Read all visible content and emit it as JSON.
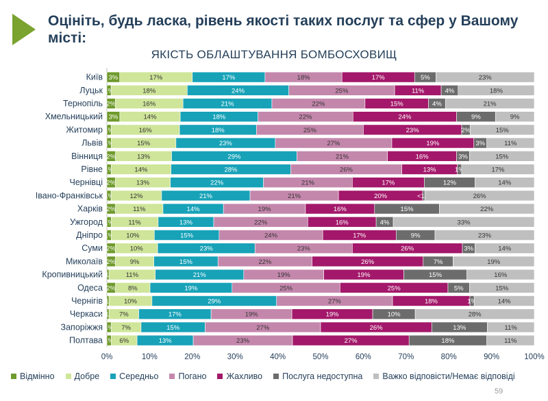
{
  "heading": "Оцініть, будь ласка, рівень якості таких послуг та сфер у Вашому місті:",
  "page_number": "59",
  "colors": {
    "accent": "#7aa32f",
    "title": "#243f5a",
    "series": [
      "#6f9a2c",
      "#cfe59a",
      "#17a2b8",
      "#c487ac",
      "#a3186a",
      "#6c6c6c",
      "#bfbfbf"
    ]
  },
  "chart_data": {
    "type": "bar",
    "orientation": "horizontal-stacked-percent",
    "title": "ЯКІСТЬ ОБЛАШТУВАННЯ  БОМБОСХОВИЩ",
    "xlim": [
      0,
      100
    ],
    "x_ticks": [
      "0%",
      "10%",
      "20%",
      "30%",
      "40%",
      "50%",
      "60%",
      "70%",
      "80%",
      "90%",
      "100%"
    ],
    "legend_position": "bottom",
    "categories": [
      "Київ",
      "Луцьк",
      "Тернопіль",
      "Хмельницький",
      "Житомир",
      "Львів",
      "Вінниця",
      "Рівне",
      "Чернівці",
      "Івано-Франківськ",
      "Харків",
      "Ужгород",
      "Дніпро",
      "Суми",
      "Миколаїв",
      "Кропивницький",
      "Одеса",
      "Чернігів",
      "Черкаси",
      "Запоріжжя",
      "Полтава"
    ],
    "series": [
      {
        "name": "Відмінно",
        "values": [
          3,
          1,
          2,
          3,
          1,
          1,
          2,
          1,
          2,
          1,
          2,
          1,
          1,
          2,
          2,
          0.5,
          2,
          0.5,
          0.5,
          1,
          1
        ],
        "labels": [
          "3%",
          "1%",
          "2%",
          "3%",
          "1%",
          "1%",
          "2%",
          "1%",
          "2%",
          "1%",
          "2%",
          "1%",
          "1%",
          "2%",
          "2%",
          "<1%",
          "2%",
          "<1%",
          "<1%",
          "1%",
          "1%"
        ]
      },
      {
        "name": "Добре",
        "values": [
          17,
          18,
          16,
          14,
          16,
          15,
          13,
          14,
          13,
          12,
          11,
          11,
          10,
          10,
          9,
          11,
          8,
          10,
          7,
          7,
          6
        ],
        "labels": [
          "17%",
          "18%",
          "16%",
          "14%",
          "16%",
          "15%",
          "13%",
          "14%",
          "13%",
          "12%",
          "11%",
          "11%",
          "10%",
          "10%",
          "9%",
          "11%",
          "8%",
          "10%",
          "7%",
          "7%",
          "6%"
        ]
      },
      {
        "name": "Середньо",
        "values": [
          17,
          24,
          21,
          18,
          18,
          23,
          29,
          28,
          22,
          21,
          14,
          13,
          15,
          23,
          15,
          21,
          19,
          29,
          17,
          15,
          13
        ],
        "labels": [
          "17%",
          "24%",
          "21%",
          "18%",
          "18%",
          "23%",
          "29%",
          "28%",
          "22%",
          "21%",
          "14%",
          "13%",
          "15%",
          "23%",
          "15%",
          "21%",
          "19%",
          "29%",
          "17%",
          "15%",
          "13%"
        ]
      },
      {
        "name": "Погано",
        "values": [
          18,
          25,
          22,
          22,
          25,
          27,
          21,
          26,
          21,
          21,
          19,
          22,
          24,
          23,
          22,
          19,
          25,
          27,
          19,
          27,
          23
        ],
        "labels": [
          "18%",
          "25%",
          "22%",
          "22%",
          "25%",
          "27%",
          "21%",
          "26%",
          "21%",
          "21%",
          "19%",
          "22%",
          "24%",
          "23%",
          "22%",
          "19%",
          "25%",
          "27%",
          "19%",
          "27%",
          "23%"
        ]
      },
      {
        "name": "Жахливо",
        "values": [
          17,
          11,
          15,
          24,
          23,
          19,
          16,
          13,
          17,
          20,
          16,
          16,
          17,
          26,
          26,
          19,
          25,
          18,
          19,
          26,
          27
        ],
        "labels": [
          "17%",
          "11%",
          "15%",
          "24%",
          "23%",
          "19%",
          "16%",
          "13%",
          "17%",
          "20%",
          "16%",
          "16%",
          "17%",
          "26%",
          "26%",
          "19%",
          "25%",
          "18%",
          "19%",
          "26%",
          "27%"
        ]
      },
      {
        "name": "Послуга недоступна",
        "values": [
          5,
          4,
          4,
          9,
          2,
          3,
          3,
          1,
          12,
          0.5,
          15,
          4,
          9,
          3,
          7,
          15,
          5,
          1,
          10,
          13,
          18
        ],
        "labels": [
          "5%",
          "4%",
          "4%",
          "9%",
          "2%",
          "3%",
          "3%",
          "1%",
          "12%",
          "<1%",
          "15%",
          "4%",
          "9%",
          "3%",
          "7%",
          "15%",
          "5%",
          "1%",
          "10%",
          "13%",
          "18%"
        ]
      },
      {
        "name": "Важко відповісти/Немає відповіді",
        "values": [
          23,
          18,
          21,
          9,
          15,
          11,
          15,
          17,
          14,
          26,
          22,
          33,
          23,
          14,
          19,
          16,
          15,
          14,
          28,
          11,
          11
        ],
        "labels": [
          "23%",
          "18%",
          "21%",
          "9%",
          "15%",
          "11%",
          "15%",
          "17%",
          "14%",
          "26%",
          "22%",
          "33%",
          "23%",
          "14%",
          "19%",
          "16%",
          "15%",
          "14%",
          "28%",
          "11%",
          "11%"
        ]
      }
    ]
  }
}
